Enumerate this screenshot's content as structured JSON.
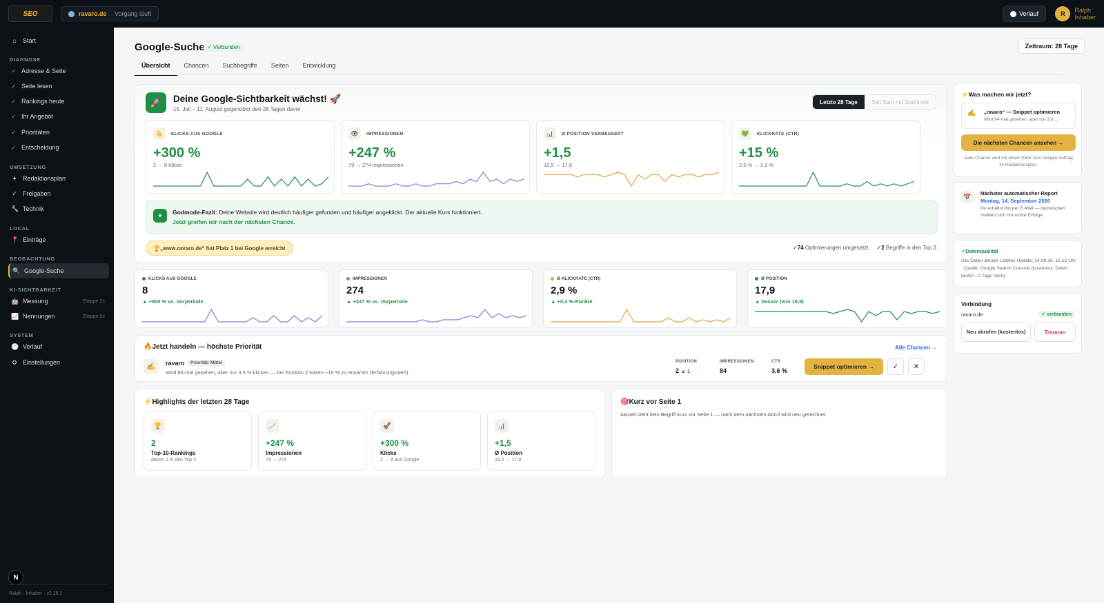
{
  "topbar": {
    "logo_text": "SEO",
    "domain": "ravaro.de",
    "status": "· Vorgang läuft",
    "history_label": "Verlauf",
    "user_initial": "R",
    "user_name": "Ralph",
    "user_role": "Inhaber"
  },
  "sidebar": {
    "start": "Start",
    "sections": {
      "diagnose": "DIAGNOSE",
      "umsetzung": "UMSETZUNG",
      "local": "LOCAL",
      "beobachtung": "BEOBACHTUNG",
      "ki": "KI-SICHTBARKEIT",
      "system": "SYSTEM"
    },
    "diagnose_items": [
      "Adresse & Seite",
      "Seite lesen",
      "Rankings heute",
      "Ihr Angebot",
      "Prioritäten",
      "Entscheidung"
    ],
    "umsetzung_items": [
      "Redaktionsplan",
      "Freigaben",
      "Technik"
    ],
    "local_items": [
      "Einträge"
    ],
    "beobachtung_items": [
      "Google-Suche"
    ],
    "ki_items": [
      {
        "label": "Messung",
        "tag": "Etappe 2c"
      },
      {
        "label": "Nennungen",
        "tag": "Etappe 2c"
      }
    ],
    "system_items": [
      "Verlauf",
      "Einstellungen"
    ],
    "footer_badge": "N",
    "version": "Ralph · Inhaber · v2.16.1"
  },
  "page": {
    "title": "Google-Suche",
    "connected": "✓ Verbunden",
    "period": "Zeitraum: 28 Tage",
    "tabs": [
      "Übersicht",
      "Chancen",
      "Suchbegriffe",
      "Seiten",
      "Entwicklung"
    ]
  },
  "hero": {
    "title": "Deine Google-Sichtbarkeit wächst! 🚀",
    "subtitle": "15. Juli – 11. August gegenüber den 28 Tagen davor",
    "toggle_on": "Letzte 28 Tage",
    "toggle_off": "Seit Start mit Godmode",
    "kpis": [
      {
        "icon": "👆",
        "label": "KLICKS AUS GOOGLE",
        "value": "+300 %",
        "detail": "2 → 8 Klicks",
        "color": "#1f8f47",
        "spark": [
          2,
          2,
          2,
          2,
          2,
          2,
          2,
          2,
          8,
          2,
          2,
          2,
          2,
          2,
          5,
          2,
          2,
          6,
          2,
          5,
          2,
          6,
          2,
          5,
          2,
          3,
          6
        ]
      },
      {
        "icon": "👁",
        "label": "IMPRESSIONEN",
        "value": "+247 %",
        "detail": "79 → 274 Impressionen",
        "color": "#8b78d8",
        "spark": [
          2,
          2,
          2,
          3,
          2,
          2,
          2,
          3,
          2,
          2,
          3,
          2,
          2,
          3,
          3,
          3,
          4,
          3,
          5,
          4,
          8,
          4,
          5,
          3,
          5,
          4,
          5
        ]
      },
      {
        "icon": "📊",
        "label": "Ø POSITION VERBESSERT",
        "value": "+1,5",
        "detail": "19,5 → 17,9",
        "color": "#e8a23a",
        "spark": [
          6,
          6,
          6,
          6,
          6,
          5,
          6,
          6,
          6,
          5,
          6,
          7,
          6,
          1,
          6,
          4,
          6,
          6,
          3,
          6,
          5,
          6,
          6,
          5,
          6,
          6,
          7
        ]
      },
      {
        "icon": "💚",
        "label": "KLICKRATE (CTR)",
        "value": "+15 %",
        "detail": "2,5 % → 2,9 %",
        "color": "#1f8f47",
        "spark": [
          2,
          2,
          2,
          2,
          2,
          2,
          2,
          2,
          2,
          2,
          2,
          8,
          2,
          2,
          2,
          2,
          3,
          2,
          2,
          4,
          2,
          3,
          2,
          3,
          2,
          3,
          4
        ]
      }
    ],
    "fazit_title": "Godmode-Fazit:",
    "fazit_text": "Deine Website wird deutlich häufiger gefunden und häufiger angeklickt. Der aktuelle Kurs funktioniert.",
    "fazit_link": "Jetzt greifen wir nach der nächsten Chance.",
    "trophy": "🏆„www.ravaro.de“ hat Platz 1 bei Google erreicht",
    "stat1_num": "74",
    "stat1_text": "Optimierungen umgesetzt",
    "stat2_num": "2",
    "stat2_text": "Begriffe in den Top 3"
  },
  "minis": [
    {
      "label": "KLICKS AUS GOOGLE",
      "value": "8",
      "delta": "▲ +300 % vs. Vorperiode",
      "dot": "#1f6fd6",
      "color": "#8b78d8",
      "spark": [
        2,
        2,
        2,
        2,
        2,
        2,
        2,
        2,
        2,
        2,
        8,
        2,
        2,
        2,
        2,
        2,
        4,
        2,
        2,
        5,
        2,
        2,
        5,
        2,
        4,
        2,
        5
      ]
    },
    {
      "label": "IMPRESSIONEN",
      "value": "274",
      "delta": "▲ +247 % vs. Vorperiode",
      "dot": "#8b78d8",
      "color": "#8b78d8",
      "spark": [
        2,
        2,
        2,
        2,
        2,
        2,
        2,
        2,
        2,
        2,
        2,
        3,
        2,
        2,
        3,
        3,
        3,
        4,
        5,
        4,
        8,
        4,
        6,
        4,
        5,
        4,
        5
      ]
    },
    {
      "label": "Ø KLICKRATE (CTR)",
      "value": "2,9 %",
      "delta": "▲ +0,4 %-Punkte",
      "dot": "#e8a23a",
      "color": "#e8a23a",
      "spark": [
        2,
        2,
        2,
        2,
        2,
        2,
        2,
        2,
        2,
        2,
        2,
        8,
        2,
        2,
        2,
        2,
        2,
        4,
        2,
        2,
        4,
        2,
        3,
        2,
        3,
        2,
        4
      ]
    },
    {
      "label": "Ø POSITION",
      "value": "17,9",
      "delta": "▲ besser (von 19,5)",
      "dot": "#1f8f47",
      "color": "#1f8f47",
      "spark": [
        6,
        6,
        6,
        6,
        6,
        6,
        6,
        6,
        6,
        6,
        6,
        5,
        6,
        7,
        6,
        1,
        6,
        4,
        6,
        6,
        2,
        6,
        5,
        6,
        6,
        5,
        6
      ]
    }
  ],
  "priority": {
    "title": "🔥Jetzt handeln — höchste Priorität",
    "all_link": "Alle Chancen →",
    "icon": "✍",
    "name": "ravaro",
    "badge": "Priorität: Mittel",
    "desc": "Wird 84-mal gesehen, aber nur 3,6 % klicken — bei Position 2 wären ~15 % zu erwarten (Erfahrungswert).",
    "pos_label": "POSITION",
    "pos_value": "2",
    "pos_change": "▲ 1",
    "imp_label": "IMPRESSIONEN",
    "imp_value": "84",
    "ctr_label": "CTR",
    "ctr_value": "3,6 %",
    "button": "Snippet optimieren →"
  },
  "highlights": {
    "title": "⚡Highlights der letzten 28 Tage",
    "items": [
      {
        "icon": "🏆",
        "value": "2",
        "name": "Top-10-Rankings",
        "detail": "davon 2 in den Top 3"
      },
      {
        "icon": "📈",
        "value": "+247 %",
        "name": "Impressionen",
        "detail": "79 → 274"
      },
      {
        "icon": "🚀",
        "value": "+300 %",
        "name": "Klicks",
        "detail": "2 → 8 aus Google"
      },
      {
        "icon": "📊",
        "value": "+1,5",
        "name": "Ø Position",
        "detail": "19,5 → 17,9"
      }
    ]
  },
  "kurz": {
    "title": "🎯Kurz vor Seite 1",
    "text": "Aktuell steht kein Begriff kurz vor Seite 1 — nach dem nächsten Abruf wird neu gerechnet."
  },
  "right": {
    "what_title": "⚡Was machen wir jetzt?",
    "snippet_title": "„ravaro“ — Snippet optimieren",
    "snippet_sub": "Wird 84-mal gesehen, aber nur 3,6 ...",
    "chances_btn": "Die nächsten Chancen ansehen →",
    "chances_note": "Jede Chance wird mit einem Klick zum fertigen Auftrag im Redaktionsplan.",
    "report_title": "Nächster automatischer Report",
    "report_date": "Montag, 14. September 2026",
    "report_sub": "Du erhältst ihn per E-Mail — dazwischen melden sich nur echte Erfolge.",
    "quality_title": "✓Datenqualität",
    "quality_text": "Alle Daten aktuell. Letztes Update: 14.08.26, 15:15 Uhr · Quelle: Google Search Console (kostenlos, Daten laufen ~2 Tage nach).",
    "conn_title": "Verbindung",
    "conn_domain": "ravaro.de",
    "conn_status": "✓ verbunden",
    "refresh_btn": "Neu abrufen (kostenlos)",
    "disconnect_btn": "Trennen"
  }
}
